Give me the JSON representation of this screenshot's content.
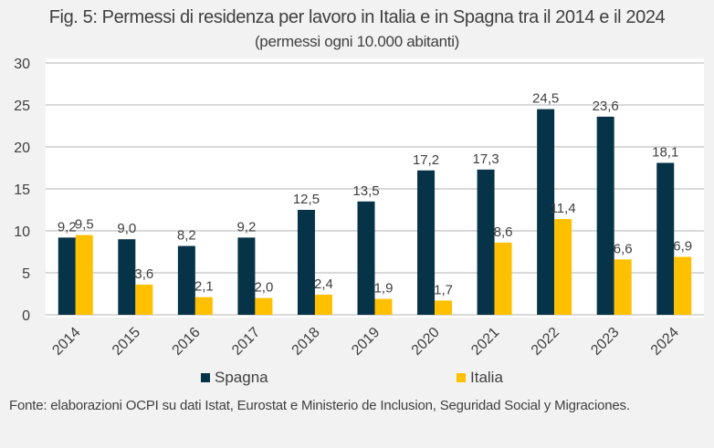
{
  "chart_data": {
    "type": "bar",
    "title": "Fig. 5: Permessi di residenza per lavoro in Italia e in Spagna tra il 2014 e il 2024",
    "subtitle": "(permessi ogni 10.000 abitanti)",
    "xlabel": "",
    "ylabel": "",
    "ylim": [
      0,
      30
    ],
    "yticks": [
      "0",
      "5",
      "10",
      "15",
      "20",
      "25",
      "30"
    ],
    "grid": true,
    "legend_position": "bottom",
    "categories": [
      "2014",
      "2015",
      "2016",
      "2017",
      "2018",
      "2019",
      "2020",
      "2021",
      "2022",
      "2023",
      "2024"
    ],
    "series": [
      {
        "name": "Spagna",
        "color": "#073349",
        "values": [
          9.2,
          9.0,
          8.2,
          9.2,
          12.5,
          13.5,
          17.2,
          17.3,
          24.5,
          23.6,
          18.1
        ],
        "labels": [
          "9,2",
          "9,0",
          "8,2",
          "9,2",
          "12,5",
          "13,5",
          "17,2",
          "17,3",
          "24,5",
          "23,6",
          "18,1"
        ]
      },
      {
        "name": "Italia",
        "color": "#ffc000",
        "values": [
          9.5,
          3.6,
          2.1,
          2.0,
          2.4,
          1.9,
          1.7,
          8.6,
          11.4,
          6.6,
          6.9
        ],
        "labels": [
          "9,5",
          "3,6",
          "2,1",
          "2,0",
          "2,4",
          "1,9",
          "1,7",
          "8,6",
          "11,4",
          "6,6",
          "6,9"
        ]
      }
    ],
    "source": "Fonte: elaborazioni OCPI su dati Istat, Eurostat e Ministerio de Inclusion, Seguridad Social y Migraciones."
  }
}
